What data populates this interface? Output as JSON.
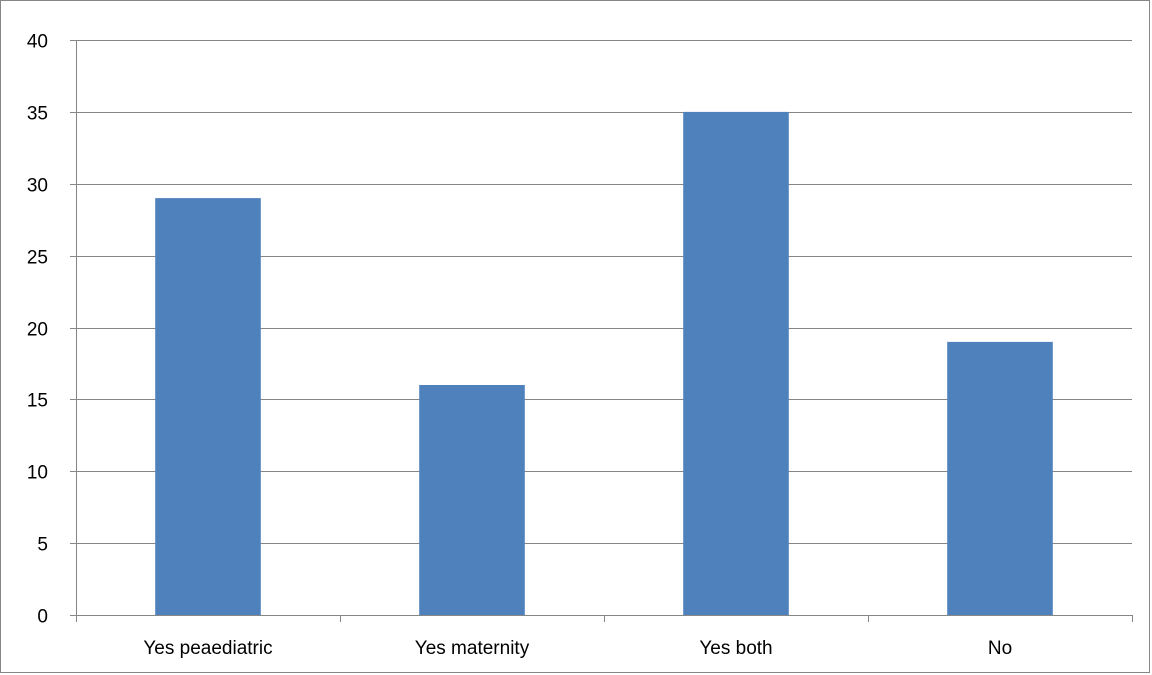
{
  "chart_data": {
    "type": "bar",
    "categories": [
      "Yes peaediatric",
      "Yes maternity",
      "Yes both",
      "No"
    ],
    "values": [
      29,
      16,
      35,
      19
    ],
    "ylim": [
      0,
      40
    ],
    "yticks": [
      0,
      5,
      10,
      15,
      20,
      25,
      30,
      35,
      40
    ],
    "grid": true,
    "legend": "none",
    "colors": {
      "bar": "#4F81BD",
      "grid": "#868686",
      "axis": "#868686",
      "text": "#000000"
    }
  }
}
